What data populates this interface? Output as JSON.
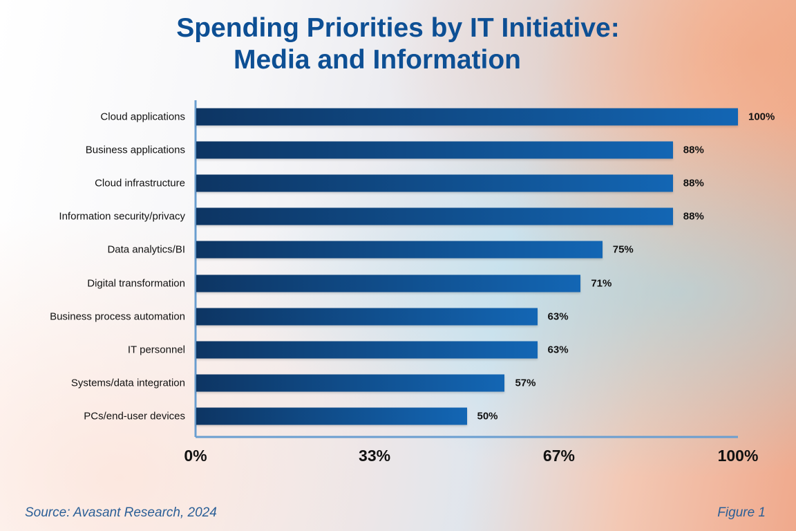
{
  "chart_data": {
    "type": "bar",
    "orientation": "horizontal",
    "title": "Spending Priorities by IT Initiative:",
    "subtitle": "Media and Information",
    "categories": [
      "Cloud applications",
      "Business applications",
      "Cloud infrastructure",
      "Information security/privacy",
      "Data analytics/BI",
      "Digital transformation",
      "Business process automation",
      "IT personnel",
      "Systems/data integration",
      "PCs/end-user devices"
    ],
    "values": [
      100,
      88,
      88,
      88,
      75,
      71,
      63,
      63,
      57,
      50
    ],
    "value_labels": [
      "100%",
      "88%",
      "88%",
      "88%",
      "75%",
      "71%",
      "63%",
      "63%",
      "57%",
      "50%"
    ],
    "xlim": [
      0,
      100
    ],
    "xticks": [
      0,
      33,
      67,
      100
    ],
    "xtick_labels": [
      "0%",
      "33%",
      "67%",
      "100%"
    ],
    "grid": false,
    "bar_color_start": "#0d3563",
    "bar_color_end": "#1366b4",
    "axis_color": "#6a9ed0"
  },
  "footer": {
    "source": "Source: Avasant Research, 2024",
    "figure": "Figure 1"
  },
  "colors": {
    "title": "#0d4f94",
    "footer": "#2b5f96"
  }
}
